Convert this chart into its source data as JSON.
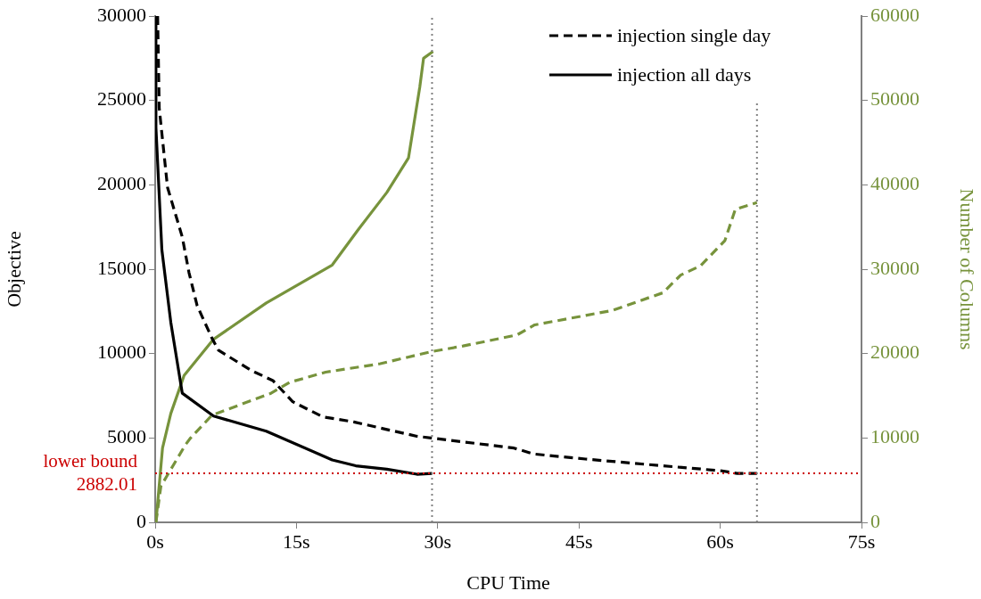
{
  "chart_data": {
    "type": "line",
    "xlabel": "CPU Time",
    "ylabel": "Objective",
    "y2label": "Number of Columns",
    "xlim": [
      0,
      75
    ],
    "xticks": [
      {
        "value": 0,
        "label": "0s"
      },
      {
        "value": 15,
        "label": "15s"
      },
      {
        "value": 30,
        "label": "30s"
      },
      {
        "value": 45,
        "label": "45s"
      },
      {
        "value": 60,
        "label": "60s"
      },
      {
        "value": 75,
        "label": "75s"
      }
    ],
    "ylim": [
      0,
      30000
    ],
    "yticks": [
      0,
      5000,
      10000,
      15000,
      20000,
      25000,
      30000
    ],
    "y2lim": [
      0,
      60000
    ],
    "y2ticks": [
      0,
      10000,
      20000,
      30000,
      40000,
      50000,
      60000
    ],
    "legend": "top right",
    "marker": "none",
    "ref_lines": [
      {
        "axis": "y",
        "value": 2882.01,
        "label": "lower bound 2882.01",
        "color": "#cc0000",
        "line_style": "dotted"
      },
      {
        "axis": "x",
        "value": 29.4,
        "color": "#808080",
        "line_style": "dotted"
      },
      {
        "axis": "x",
        "value": 63.9,
        "color": "#808080",
        "line_style": "dotted"
      }
    ],
    "series": [
      {
        "name": "injection single day",
        "color": "#000000",
        "line_style": "dashed",
        "x": [
          0.26,
          0.43,
          1.31,
          2.88,
          3.59,
          4.45,
          6.04,
          6.72,
          10.2,
          12.5,
          14.6,
          17.8,
          21.1,
          24.6,
          27.8,
          29.3,
          38.1,
          40.2,
          45.7,
          53.9,
          60.2,
          61.8,
          63.9
        ],
        "values": [
          30000,
          24550,
          19850,
          16900,
          14800,
          12850,
          10900,
          10200,
          9000,
          8400,
          7150,
          6250,
          5950,
          5500,
          5100,
          5000,
          4400,
          4050,
          3750,
          3350,
          3050,
          2900,
          2900
        ]
      },
      {
        "name": "injection all days",
        "color": "#000000",
        "line_style": "solid",
        "x": [
          0.08,
          0.08,
          0.71,
          1.66,
          2.88,
          6.2,
          11.8,
          18.8,
          21.3,
          24.6,
          27.8,
          29.4
        ],
        "values": [
          30000,
          23400,
          16150,
          11850,
          7650,
          6300,
          5400,
          3700,
          3350,
          3150,
          2850,
          2900
        ]
      },
      {
        "color": "#77933c",
        "line_style": "dashed",
        "axis": "y2",
        "x": [
          0.08,
          0.61,
          3.22,
          3.76,
          6.04,
          12.3,
          14.3,
          18.1,
          23.9,
          29.2,
          32.7,
          38.4,
          40.3,
          48.5,
          53.9,
          55.8,
          57.9,
          60.5,
          61.6,
          63.9
        ],
        "values": [
          0,
          4300,
          9200,
          10000,
          12700,
          15300,
          16600,
          17800,
          18800,
          20200,
          20900,
          22200,
          23400,
          25100,
          27200,
          29300,
          30400,
          33400,
          37100,
          37900
        ]
      },
      {
        "color": "#77933c",
        "line_style": "solid",
        "axis": "y2",
        "x": [
          0.08,
          0.78,
          1.66,
          3.07,
          6.2,
          11.8,
          18.8,
          21.5,
          24.6,
          26.9,
          28.1,
          28.5,
          29.5
        ],
        "values": [
          0,
          8800,
          12900,
          17400,
          21700,
          26000,
          30500,
          34600,
          39100,
          43200,
          51600,
          55000,
          55800
        ]
      }
    ]
  }
}
